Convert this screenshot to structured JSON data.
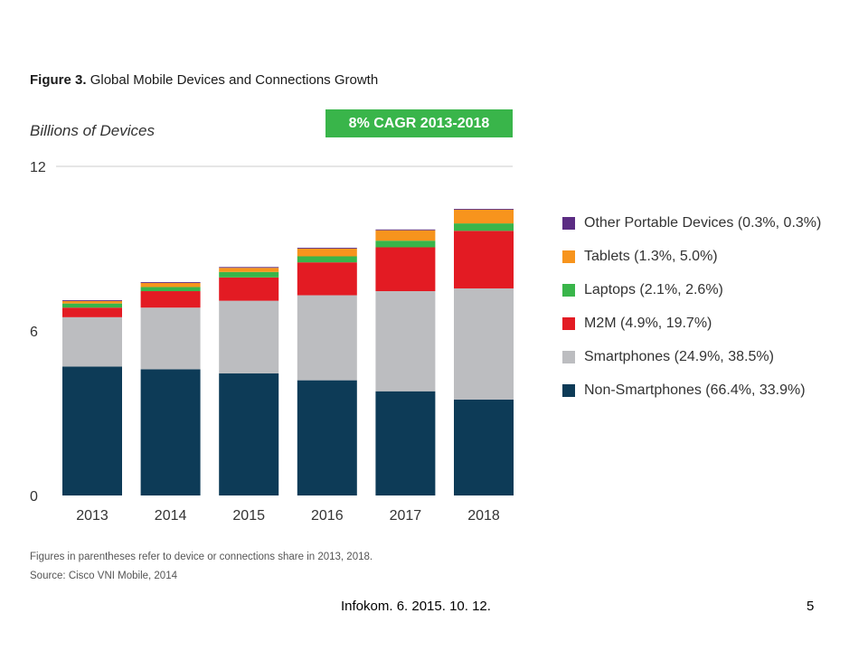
{
  "figure": {
    "label": "Figure 3.",
    "title": "Global Mobile Devices and Connections Growth",
    "units_label": "Billions of Devices",
    "cagr_badge": "8% CAGR 2013-2018",
    "badge_color": "#39b54a"
  },
  "notes": {
    "parentheses": "Figures in parentheses refer to device or connections share in 2013, 2018.",
    "source": "Source: Cisco VNI Mobile, 2014"
  },
  "footer": {
    "text": "Infokom. 6. 2015. 10. 12.",
    "page_number": "5"
  },
  "legend": [
    {
      "label": "Other Portable Devices (0.3%, 0.3%)",
      "color": "#5b2c83"
    },
    {
      "label": "Tablets (1.3%, 5.0%)",
      "color": "#f7941d"
    },
    {
      "label": "Laptops (2.1%, 2.6%)",
      "color": "#39b54a"
    },
    {
      "label": "M2M (4.9%, 19.7%)",
      "color": "#e31b23"
    },
    {
      "label": "Smartphones (24.9%, 38.5%)",
      "color": "#bcbdc0"
    },
    {
      "label": "Non-Smartphones (66.4%, 33.9%)",
      "color": "#0d3b57"
    }
  ],
  "chart_data": {
    "type": "bar",
    "stacked": true,
    "categories": [
      "2013",
      "2014",
      "2015",
      "2016",
      "2017",
      "2018"
    ],
    "ylim": [
      0,
      12
    ],
    "yticks": [
      "0",
      "6",
      "12"
    ],
    "ylabel": "Billions of Devices",
    "series": [
      {
        "name": "Non-Smartphones",
        "color": "#0d3b57",
        "values": [
          4.7,
          4.6,
          4.45,
          4.2,
          3.8,
          3.5
        ]
      },
      {
        "name": "Smartphones",
        "color": "#bcbdc0",
        "values": [
          1.8,
          2.25,
          2.65,
          3.1,
          3.65,
          4.05
        ]
      },
      {
        "name": "M2M",
        "color": "#e31b23",
        "values": [
          0.35,
          0.6,
          0.85,
          1.2,
          1.6,
          2.1
        ]
      },
      {
        "name": "Laptops",
        "color": "#39b54a",
        "values": [
          0.15,
          0.15,
          0.2,
          0.22,
          0.24,
          0.27
        ]
      },
      {
        "name": "Tablets",
        "color": "#f7941d",
        "values": [
          0.09,
          0.15,
          0.15,
          0.28,
          0.38,
          0.5
        ]
      },
      {
        "name": "Other Portable Devices",
        "color": "#5b2c83",
        "values": [
          0.03,
          0.03,
          0.03,
          0.03,
          0.03,
          0.03
        ]
      }
    ]
  }
}
